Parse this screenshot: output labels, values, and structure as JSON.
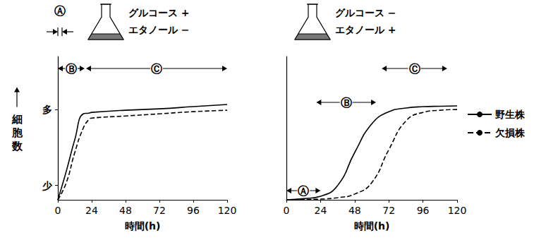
{
  "chart_data": [
    {
      "type": "line",
      "conditions": [
        "グルコース +",
        "エタノール −"
      ],
      "xlabel": "時間(h)",
      "ylabel": "細胞数",
      "x": [
        0,
        6,
        12,
        18,
        22,
        24,
        48,
        72,
        96,
        120
      ],
      "series": [
        {
          "name": "野生株",
          "color": "#000000",
          "line_style": "solid",
          "values": [
            0,
            20,
            42,
            60,
            60.5,
            61,
            62.5,
            63.5,
            65,
            66.5
          ]
        },
        {
          "name": "欠損株",
          "color": "#000000",
          "line_style": "dashed",
          "values": [
            0,
            12,
            33,
            50,
            56,
            57,
            58.5,
            60,
            61.5,
            62.5
          ]
        }
      ],
      "xlim": [
        0,
        120
      ],
      "xticks": [
        0,
        24,
        48,
        72,
        96,
        120
      ],
      "ylim": [
        0,
        100
      ],
      "yticks": [
        {
          "value": 10,
          "label": "少"
        },
        {
          "value": 63,
          "label": "多"
        }
      ],
      "annotations": [
        {
          "label": "Ⓐ",
          "x_range": [
            0,
            3
          ]
        },
        {
          "label": "Ⓑ",
          "x_range": [
            0,
            19
          ]
        },
        {
          "label": "Ⓒ",
          "x_range": [
            20,
            120
          ]
        }
      ],
      "grid": false
    },
    {
      "type": "line",
      "conditions": [
        "グルコース −",
        "エタノール +"
      ],
      "xlabel": "時間(h)",
      "x": [
        0,
        12,
        24,
        36,
        48,
        60,
        72,
        84,
        96,
        108,
        120
      ],
      "series": [
        {
          "name": "野生株",
          "color": "#000000",
          "line_style": "solid",
          "values": [
            0,
            0.8,
            2.5,
            10,
            33,
            53,
            61.5,
            64,
            65,
            65.3,
            65.5
          ]
        },
        {
          "name": "欠損株",
          "color": "#000000",
          "line_style": "dashed",
          "values": [
            0,
            0.2,
            0.5,
            1.5,
            4,
            12,
            35,
            55,
            61,
            62.5,
            63
          ]
        }
      ],
      "xlim": [
        0,
        120
      ],
      "xticks": [
        0,
        24,
        48,
        72,
        96,
        120
      ],
      "ylim": [
        0,
        100
      ],
      "tick_labels": "x",
      "annotations": [
        {
          "label": "Ⓐ",
          "x_range": [
            0,
            24
          ]
        },
        {
          "label": "Ⓑ",
          "x_range": [
            21,
            63
          ]
        },
        {
          "label": "Ⓒ",
          "x_range": [
            67,
            113
          ]
        }
      ],
      "legend": "right",
      "grid": false
    }
  ]
}
